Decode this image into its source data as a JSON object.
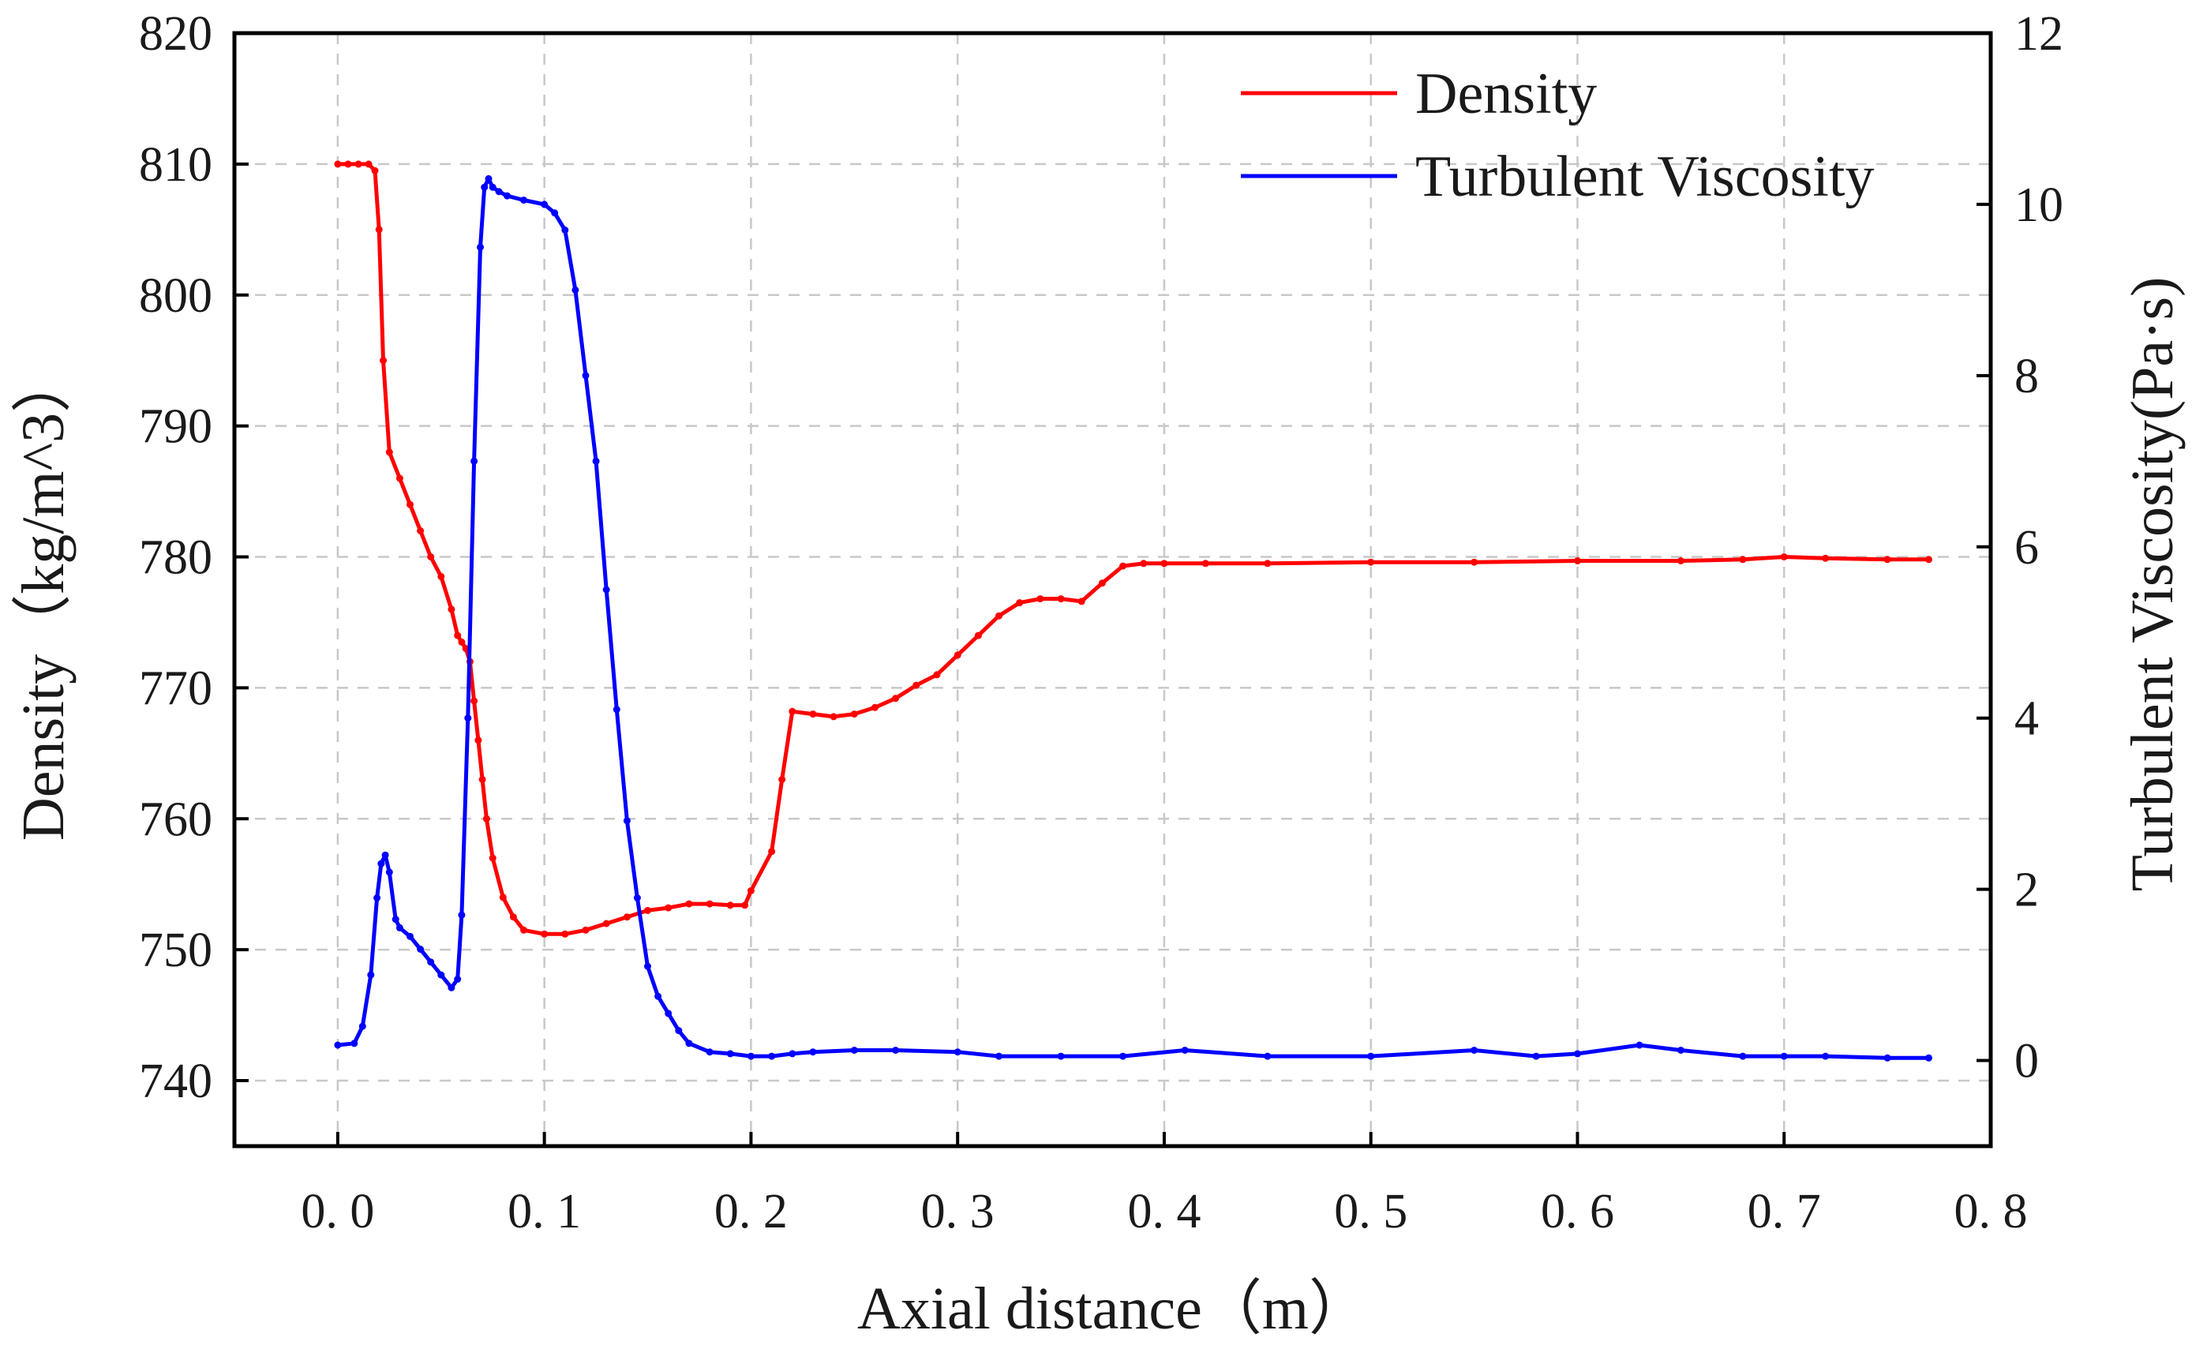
{
  "chart_data": {
    "type": "line",
    "xlabel": "Axial distance（m）",
    "ylabel": "Density（kg/m^3）",
    "y2label": "Turbulent Viscosity(Pa·s)",
    "xlim": [
      -0.05,
      0.8
    ],
    "ylim": [
      735,
      820
    ],
    "y2lim": [
      -1,
      12
    ],
    "xticks": [
      0.0,
      0.1,
      0.2,
      0.3,
      0.4,
      0.5,
      0.6,
      0.7,
      0.8
    ],
    "xtick_labels": [
      "0. 0",
      "0. 1",
      "0. 2",
      "0. 3",
      "0. 4",
      "0. 5",
      "0. 6",
      "0. 7",
      "0. 8"
    ],
    "yticks": [
      740,
      750,
      760,
      770,
      780,
      790,
      800,
      810,
      820
    ],
    "ytick_labels": [
      "740",
      "750",
      "760",
      "770",
      "780",
      "790",
      "800",
      "810",
      "820"
    ],
    "y2ticks": [
      0,
      2,
      4,
      6,
      8,
      10,
      12
    ],
    "y2tick_labels": [
      "0",
      "2",
      "4",
      "6",
      "8",
      "10",
      "12"
    ],
    "grid": true,
    "legend_position": "top-right",
    "series": [
      {
        "name": "Density",
        "axis": "left",
        "color": "#ff0000",
        "x": [
          0.0,
          0.005,
          0.01,
          0.015,
          0.018,
          0.02,
          0.022,
          0.025,
          0.03,
          0.035,
          0.04,
          0.045,
          0.05,
          0.055,
          0.058,
          0.06,
          0.062,
          0.064,
          0.066,
          0.068,
          0.07,
          0.072,
          0.075,
          0.08,
          0.085,
          0.09,
          0.1,
          0.11,
          0.12,
          0.13,
          0.14,
          0.15,
          0.16,
          0.17,
          0.18,
          0.19,
          0.197,
          0.2,
          0.21,
          0.215,
          0.22,
          0.23,
          0.24,
          0.25,
          0.26,
          0.27,
          0.28,
          0.29,
          0.3,
          0.31,
          0.32,
          0.33,
          0.34,
          0.35,
          0.36,
          0.37,
          0.38,
          0.39,
          0.4,
          0.42,
          0.45,
          0.5,
          0.55,
          0.6,
          0.65,
          0.68,
          0.7,
          0.72,
          0.75,
          0.77
        ],
        "values": [
          810,
          810,
          810,
          810,
          809.5,
          805,
          795,
          788,
          786,
          784,
          782,
          780,
          778.5,
          776,
          774,
          773.5,
          773,
          772,
          769,
          766,
          763,
          760,
          757,
          754,
          752.5,
          751.5,
          751.2,
          751.2,
          751.5,
          752,
          752.5,
          753,
          753.2,
          753.5,
          753.5,
          753.4,
          753.4,
          754.5,
          757.5,
          763,
          768.2,
          768,
          767.8,
          768,
          768.5,
          769.2,
          770.2,
          771,
          772.5,
          774,
          775.5,
          776.5,
          776.8,
          776.8,
          776.6,
          778,
          779.3,
          779.5,
          779.5,
          779.5,
          779.5,
          779.6,
          779.6,
          779.7,
          779.7,
          779.8,
          780,
          779.9,
          779.8,
          779.8
        ]
      },
      {
        "name": "Turbulent Viscosity",
        "axis": "right",
        "color": "#0000ff",
        "x": [
          0.0,
          0.008,
          0.012,
          0.016,
          0.019,
          0.021,
          0.023,
          0.025,
          0.028,
          0.03,
          0.035,
          0.04,
          0.045,
          0.05,
          0.055,
          0.058,
          0.06,
          0.063,
          0.066,
          0.069,
          0.071,
          0.073,
          0.075,
          0.078,
          0.082,
          0.09,
          0.1,
          0.105,
          0.11,
          0.115,
          0.12,
          0.125,
          0.13,
          0.135,
          0.14,
          0.145,
          0.15,
          0.155,
          0.16,
          0.165,
          0.17,
          0.18,
          0.19,
          0.2,
          0.21,
          0.22,
          0.23,
          0.25,
          0.27,
          0.3,
          0.32,
          0.35,
          0.38,
          0.41,
          0.45,
          0.5,
          0.55,
          0.58,
          0.6,
          0.63,
          0.65,
          0.68,
          0.7,
          0.72,
          0.75,
          0.77
        ],
        "values": [
          0.18,
          0.2,
          0.4,
          1.0,
          1.9,
          2.3,
          2.4,
          2.2,
          1.65,
          1.55,
          1.45,
          1.3,
          1.15,
          1.0,
          0.85,
          0.95,
          1.7,
          4.0,
          7.0,
          9.5,
          10.2,
          10.3,
          10.2,
          10.15,
          10.1,
          10.05,
          10.0,
          9.9,
          9.7,
          9.0,
          8.0,
          7.0,
          5.5,
          4.1,
          2.8,
          1.9,
          1.1,
          0.75,
          0.55,
          0.35,
          0.2,
          0.1,
          0.08,
          0.05,
          0.05,
          0.08,
          0.1,
          0.12,
          0.12,
          0.1,
          0.05,
          0.05,
          0.05,
          0.12,
          0.05,
          0.05,
          0.12,
          0.05,
          0.08,
          0.18,
          0.12,
          0.05,
          0.05,
          0.05,
          0.03,
          0.03
        ]
      }
    ]
  }
}
